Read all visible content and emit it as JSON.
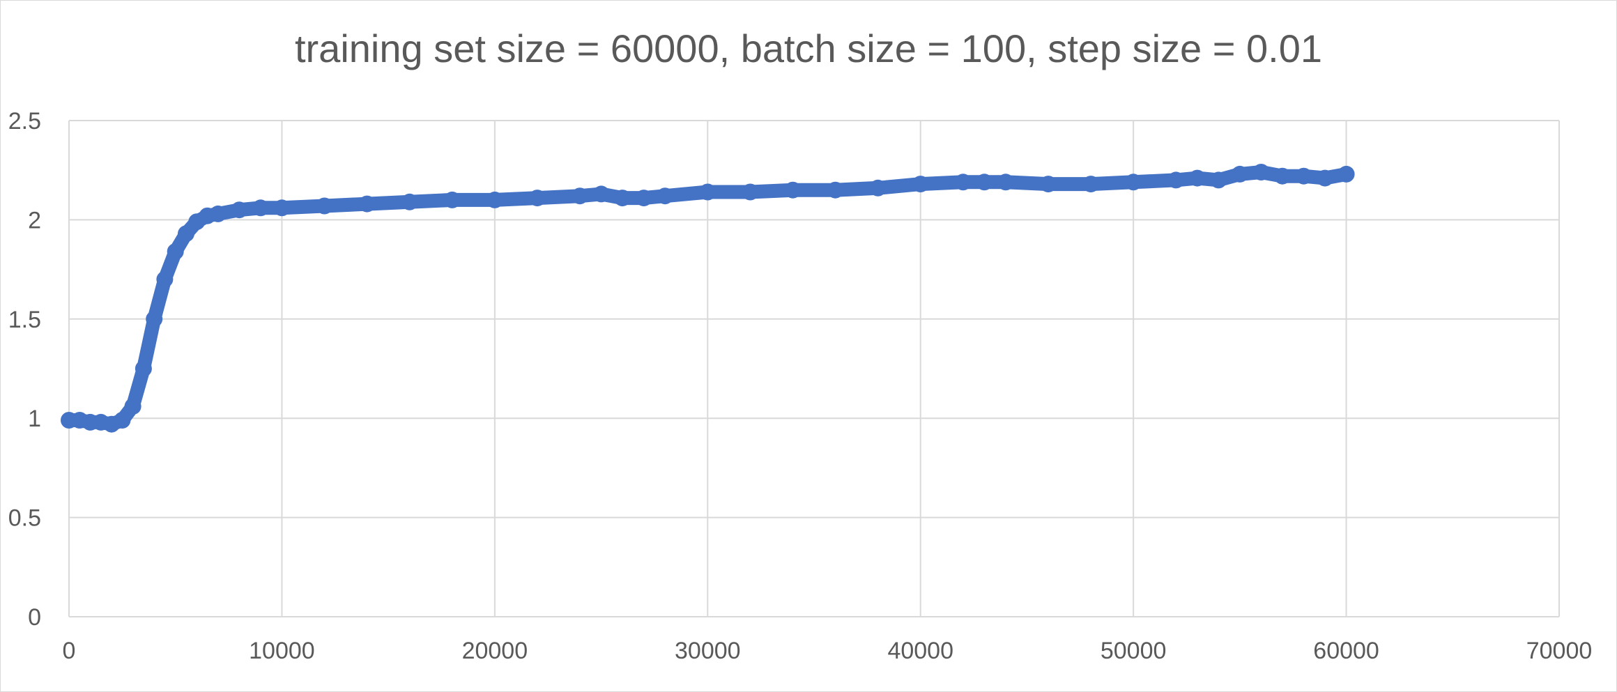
{
  "chart_data": {
    "type": "scatter",
    "title": "training set size = 60000, batch size = 100, step size = 0.01",
    "xlabel": "",
    "ylabel": "",
    "xlim": [
      0,
      70000
    ],
    "ylim": [
      0,
      2.5
    ],
    "x_ticks": [
      "0",
      "10000",
      "20000",
      "30000",
      "40000",
      "50000",
      "60000",
      "70000"
    ],
    "y_ticks": [
      "0",
      "0.5",
      "1",
      "1.5",
      "2",
      "2.5"
    ],
    "grid": true,
    "legend": "none",
    "series_color": "#4472C4",
    "series": [
      {
        "x": [
          0,
          500,
          1000,
          1500,
          2000,
          2500,
          3000,
          3500,
          4000,
          4500,
          5000,
          5500,
          6000,
          6500,
          7000,
          8000,
          9000,
          10000,
          12000,
          14000,
          16000,
          18000,
          20000,
          22000,
          24000,
          25000,
          26000,
          27000,
          28000,
          30000,
          32000,
          34000,
          36000,
          38000,
          40000,
          42000,
          43000,
          44000,
          46000,
          48000,
          50000,
          52000,
          53000,
          54000,
          55000,
          56000,
          57000,
          58000,
          59000,
          60000
        ],
        "y": [
          0.99,
          0.99,
          0.98,
          0.98,
          0.97,
          0.99,
          1.06,
          1.25,
          1.5,
          1.7,
          1.84,
          1.93,
          1.99,
          2.02,
          2.03,
          2.05,
          2.06,
          2.06,
          2.07,
          2.08,
          2.09,
          2.1,
          2.1,
          2.11,
          2.12,
          2.13,
          2.11,
          2.11,
          2.12,
          2.14,
          2.14,
          2.15,
          2.15,
          2.16,
          2.18,
          2.19,
          2.19,
          2.19,
          2.18,
          2.18,
          2.19,
          2.2,
          2.21,
          2.2,
          2.23,
          2.24,
          2.22,
          2.22,
          2.21,
          2.23
        ]
      }
    ]
  }
}
